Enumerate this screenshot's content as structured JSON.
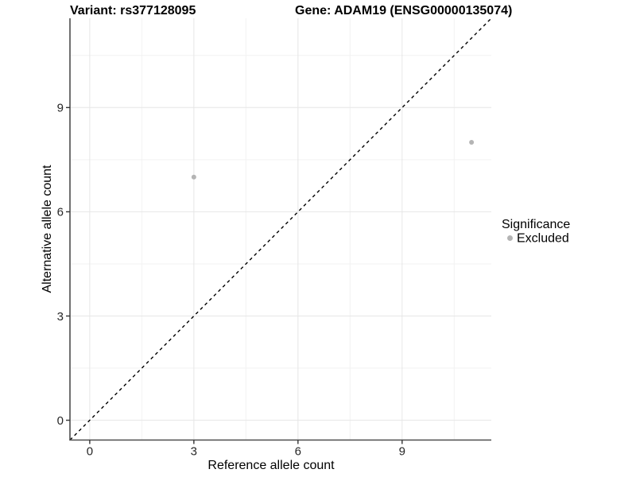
{
  "header": {
    "variant_title": "Variant: rs377128095",
    "gene_title": "Gene: ADAM19 (ENSG00000135074)"
  },
  "chart_data": {
    "type": "scatter",
    "titles": {
      "left": "Variant: rs377128095",
      "right": "Gene: ADAM19 (ENSG00000135074)"
    },
    "xlabel": "Reference allele count",
    "ylabel": "Alternative allele count",
    "xticks": [
      0,
      3,
      6,
      9
    ],
    "yticks": [
      0,
      3,
      6,
      9
    ],
    "xminor": [
      1.5,
      4.5,
      7.5,
      10.5
    ],
    "yminor": [
      1.5,
      4.5,
      7.5,
      10.5
    ],
    "xlim": [
      -0.57,
      11.57
    ],
    "ylim": [
      -0.57,
      11.57
    ],
    "grid": {
      "show": true,
      "major_color": "#e6e6e6",
      "minor_color": "#f2f2f2"
    },
    "identity_line": {
      "type": "dashed",
      "color": "#000000",
      "from": -0.57,
      "to": 11.57
    },
    "series": [
      {
        "name": "Excluded",
        "color": "#b4b4b4",
        "points": [
          {
            "x": 3,
            "y": 7
          },
          {
            "x": 11,
            "y": 8
          }
        ]
      }
    ],
    "legend": {
      "title": "Significance",
      "position": "right",
      "items": [
        {
          "label": "Excluded",
          "color": "#b4b4b4"
        }
      ]
    },
    "colors": {
      "axis_line": "#4d4d4d",
      "tick_mark": "#333333",
      "point": "#b4b4b4",
      "background": "#ffffff"
    }
  }
}
